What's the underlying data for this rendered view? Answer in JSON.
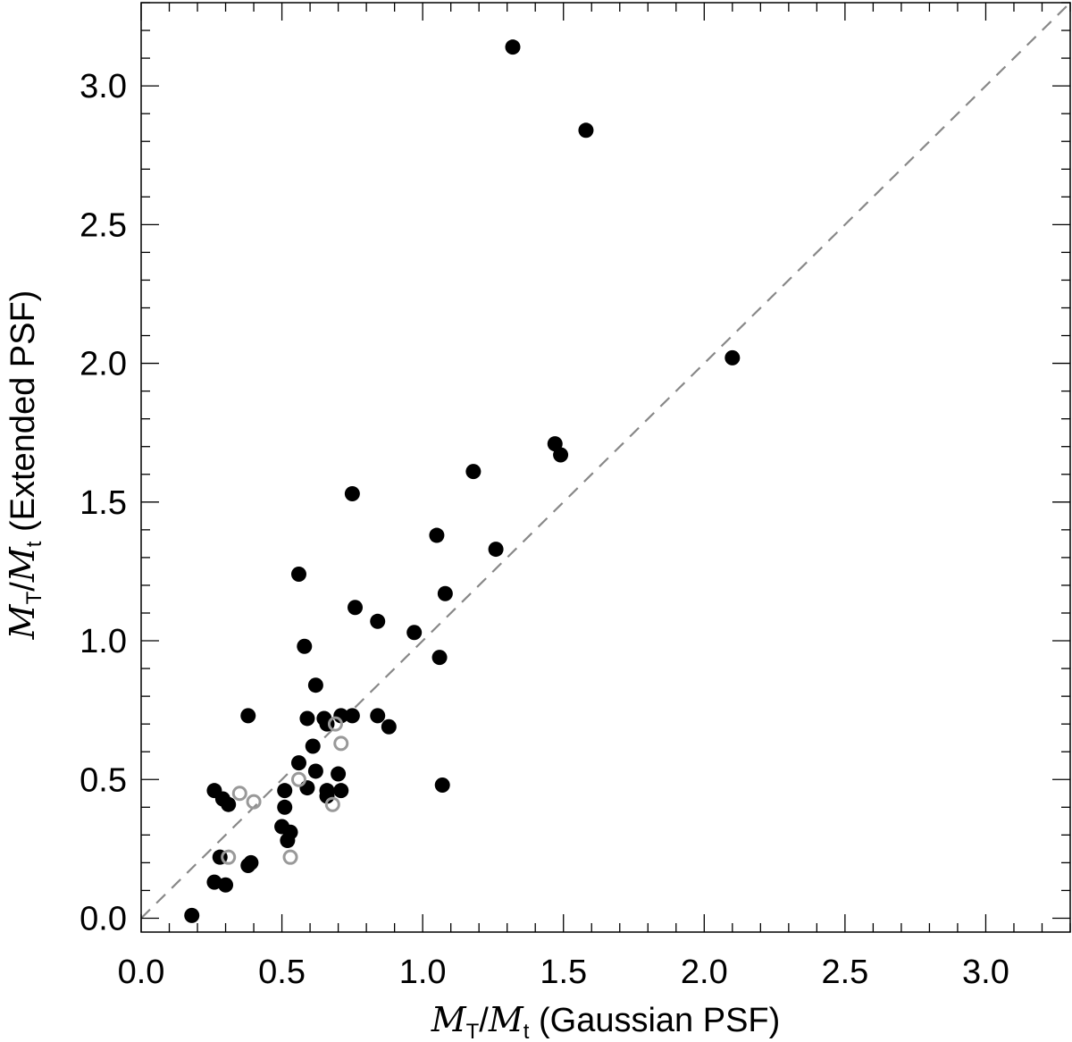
{
  "chart_data": {
    "type": "scatter",
    "title": "",
    "xlabel": {
      "symbol1": "M",
      "sub1": "T",
      "slash": "/",
      "symbol2": "M",
      "sub2": "t",
      "text": " (Gaussian PSF)"
    },
    "ylabel": {
      "symbol1": "M",
      "sub1": "T",
      "slash": "/",
      "symbol2": "M",
      "sub2": "t",
      "text": " (Extended PSF)"
    },
    "xlim": [
      0.0,
      3.3
    ],
    "ylim": [
      -0.05,
      3.3
    ],
    "xticks": [
      0.0,
      0.5,
      1.0,
      1.5,
      2.0,
      2.5,
      3.0
    ],
    "yticks": [
      0.0,
      0.5,
      1.0,
      1.5,
      2.0,
      2.5,
      3.0
    ],
    "xticklabels": [
      "0.0",
      "0.5",
      "1.0",
      "1.5",
      "2.0",
      "2.5",
      "3.0"
    ],
    "yticklabels": [
      "0.0",
      "0.5",
      "1.0",
      "1.5",
      "2.0",
      "2.5",
      "3.0"
    ],
    "minor_tick_step": 0.1,
    "reference_line": {
      "type": "y=x",
      "style": "dashed",
      "color": "#888888"
    },
    "grid": false,
    "series": [
      {
        "marker": "filled-circle",
        "color": "#000000",
        "points": [
          [
            1.32,
            3.14
          ],
          [
            1.58,
            2.84
          ],
          [
            2.1,
            2.02
          ],
          [
            1.47,
            1.71
          ],
          [
            1.49,
            1.67
          ],
          [
            1.18,
            1.61
          ],
          [
            0.75,
            1.53
          ],
          [
            1.05,
            1.38
          ],
          [
            1.26,
            1.33
          ],
          [
            0.56,
            1.24
          ],
          [
            1.08,
            1.17
          ],
          [
            0.76,
            1.12
          ],
          [
            0.84,
            1.07
          ],
          [
            0.97,
            1.03
          ],
          [
            0.58,
            0.98
          ],
          [
            1.06,
            0.94
          ],
          [
            0.62,
            0.84
          ],
          [
            0.38,
            0.73
          ],
          [
            0.59,
            0.72
          ],
          [
            0.65,
            0.72
          ],
          [
            0.66,
            0.7
          ],
          [
            0.71,
            0.73
          ],
          [
            0.75,
            0.73
          ],
          [
            0.84,
            0.73
          ],
          [
            0.88,
            0.69
          ],
          [
            0.61,
            0.62
          ],
          [
            0.56,
            0.56
          ],
          [
            0.62,
            0.53
          ],
          [
            0.7,
            0.52
          ],
          [
            0.59,
            0.47
          ],
          [
            0.66,
            0.46
          ],
          [
            0.66,
            0.44
          ],
          [
            0.71,
            0.46
          ],
          [
            1.07,
            0.48
          ],
          [
            0.26,
            0.46
          ],
          [
            0.29,
            0.43
          ],
          [
            0.31,
            0.41
          ],
          [
            0.51,
            0.46
          ],
          [
            0.51,
            0.4
          ],
          [
            0.5,
            0.33
          ],
          [
            0.53,
            0.31
          ],
          [
            0.52,
            0.28
          ],
          [
            0.28,
            0.22
          ],
          [
            0.39,
            0.2
          ],
          [
            0.38,
            0.19
          ],
          [
            0.26,
            0.13
          ],
          [
            0.3,
            0.12
          ],
          [
            0.18,
            0.01
          ]
        ]
      },
      {
        "marker": "open-circle",
        "color": "#999999",
        "points": [
          [
            0.35,
            0.45
          ],
          [
            0.4,
            0.42
          ],
          [
            0.56,
            0.5
          ],
          [
            0.71,
            0.63
          ],
          [
            0.69,
            0.7
          ],
          [
            0.68,
            0.41
          ],
          [
            0.53,
            0.22
          ],
          [
            0.31,
            0.22
          ]
        ]
      }
    ]
  }
}
